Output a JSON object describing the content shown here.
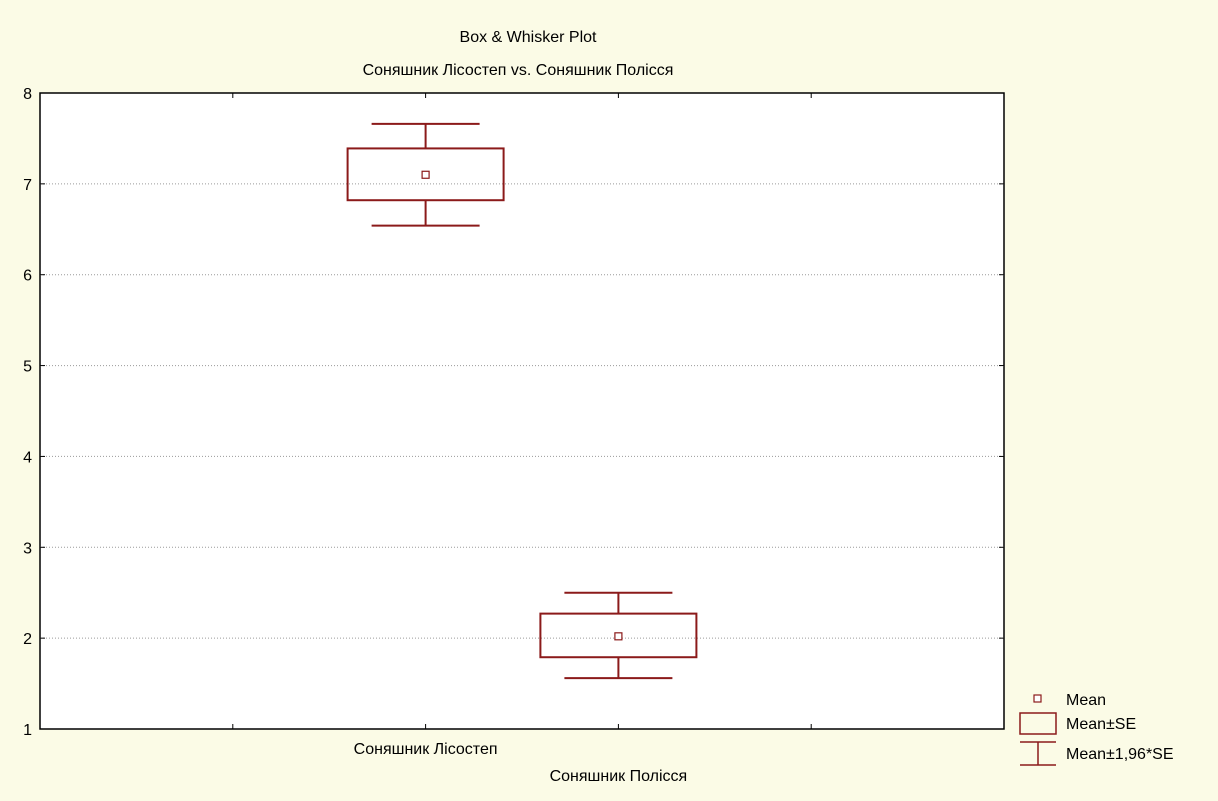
{
  "chart_data": {
    "type": "box",
    "title": "Box & Whisker Plot",
    "subtitle": "Соняшник Лісостеп vs. Соняшник Полісся",
    "categories": [
      "Соняшник Лісостеп",
      "Соняшник Полісся"
    ],
    "series": [
      {
        "category": "Соняшник Лісостеп",
        "mean": 7.1,
        "se_low": 6.82,
        "se_high": 7.39,
        "ci_low": 6.54,
        "ci_high": 7.66
      },
      {
        "category": "Соняшник Полісся",
        "mean": 2.02,
        "se_low": 1.79,
        "se_high": 2.27,
        "ci_low": 1.56,
        "ci_high": 2.5
      }
    ],
    "ylim": [
      1,
      8
    ],
    "yticks": [
      "1",
      "2",
      "3",
      "4",
      "5",
      "6",
      "7",
      "8"
    ],
    "grid": true,
    "legend": {
      "position": "bottom-right",
      "entries": [
        "Mean",
        "Mean±SE",
        "Mean±1,96*SE"
      ]
    },
    "colors": {
      "series": "#8b1a1a",
      "background": "#fbfbe6",
      "plot_area": "#ffffff",
      "grid": "#9a9a9a"
    }
  }
}
